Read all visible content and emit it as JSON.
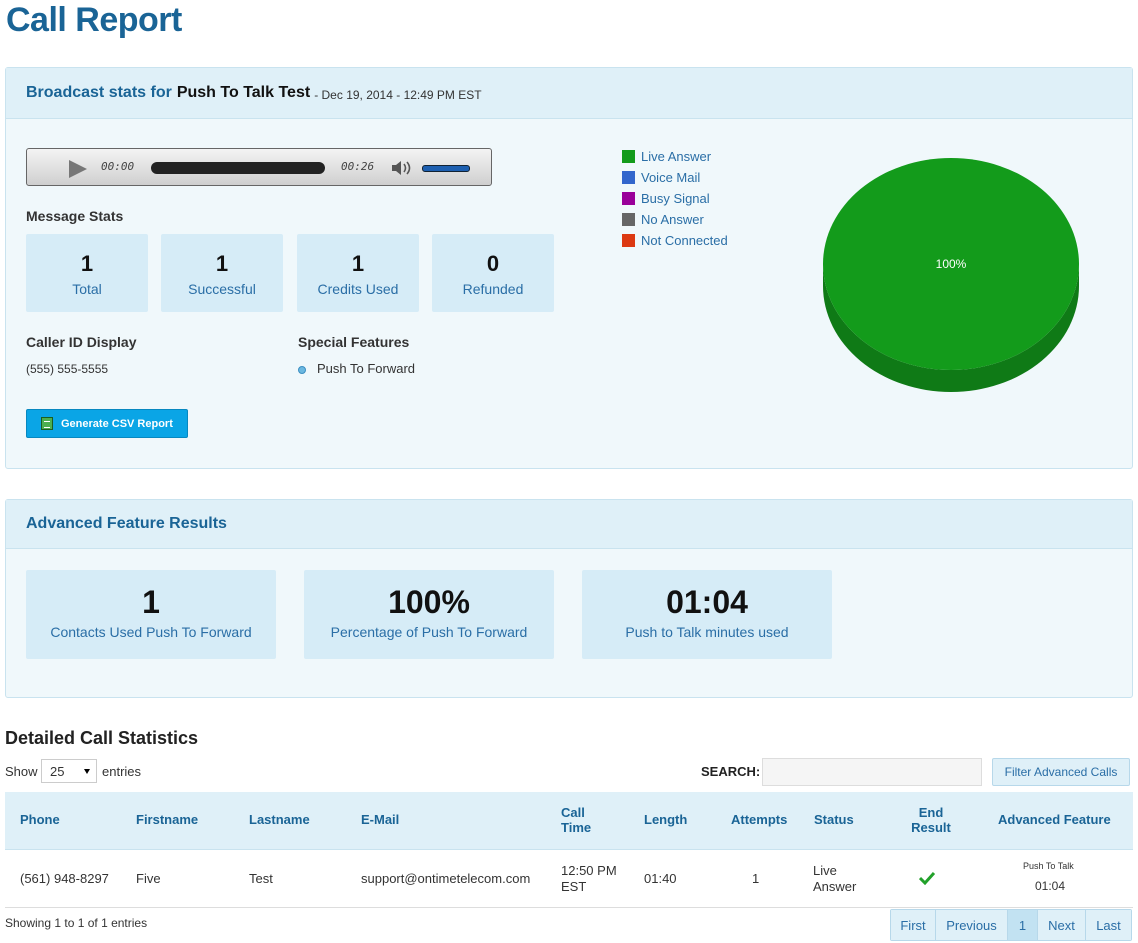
{
  "page_title": "Call Report",
  "broadcast": {
    "prefix": "Broadcast stats for",
    "name": "Push To Talk Test",
    "date": "- Dec 19, 2014 - 12:49 PM EST"
  },
  "player": {
    "current_time": "00:00",
    "duration": "00:26"
  },
  "message_stats": {
    "label": "Message Stats",
    "items": [
      {
        "value": "1",
        "label": "Total"
      },
      {
        "value": "1",
        "label": "Successful"
      },
      {
        "value": "1",
        "label": "Credits Used"
      },
      {
        "value": "0",
        "label": "Refunded"
      }
    ]
  },
  "caller_id": {
    "label": "Caller ID Display",
    "value": "(555) 555-5555"
  },
  "special_features": {
    "label": "Special Features",
    "items": [
      "Push To Forward"
    ]
  },
  "csv_button": "Generate CSV Report",
  "legend": [
    {
      "label": "Live Answer",
      "color": "#139b1b"
    },
    {
      "label": "Voice Mail",
      "color": "#3266cc"
    },
    {
      "label": "Busy Signal",
      "color": "#990099"
    },
    {
      "label": "No Answer",
      "color": "#666666"
    },
    {
      "label": "Not Connected",
      "color": "#dc3912"
    }
  ],
  "chart_data": {
    "type": "pie",
    "categories": [
      "Live Answer",
      "Voice Mail",
      "Busy Signal",
      "No Answer",
      "Not Connected"
    ],
    "values": [
      100,
      0,
      0,
      0,
      0
    ],
    "slice_labels": [
      "100%"
    ]
  },
  "advanced": {
    "title": "Advanced Feature Results",
    "items": [
      {
        "value": "1",
        "label": "Contacts Used Push To Forward"
      },
      {
        "value": "100%",
        "label": "Percentage of Push To Forward"
      },
      {
        "value": "01:04",
        "label": "Push to Talk minutes used"
      }
    ]
  },
  "detailed": {
    "title": "Detailed Call Statistics",
    "show_label": "Show",
    "page_length": "25",
    "entries_label": "entries",
    "search_label": "SEARCH:",
    "filter_button": "Filter Advanced Calls",
    "columns": [
      "Phone",
      "Firstname",
      "Lastname",
      "E-Mail",
      "Call Time",
      "Length",
      "Attempts",
      "Status",
      "End Result",
      "Advanced Feature"
    ],
    "rows": [
      {
        "phone": "(561) 948-8297",
        "firstname": "Five",
        "lastname": "Test",
        "email": "support@ontimetelecom.com",
        "call_time": "12:50 PM EST",
        "length": "01:40",
        "attempts": "1",
        "status": "Live Answer",
        "end_result_icon": "check-icon",
        "advanced_feature_label": "Push To Talk",
        "advanced_feature_value": "01:04"
      }
    ],
    "info": "Showing 1 to 1 of 1 entries",
    "pagination": [
      "First",
      "Previous",
      "1",
      "Next",
      "Last"
    ]
  }
}
